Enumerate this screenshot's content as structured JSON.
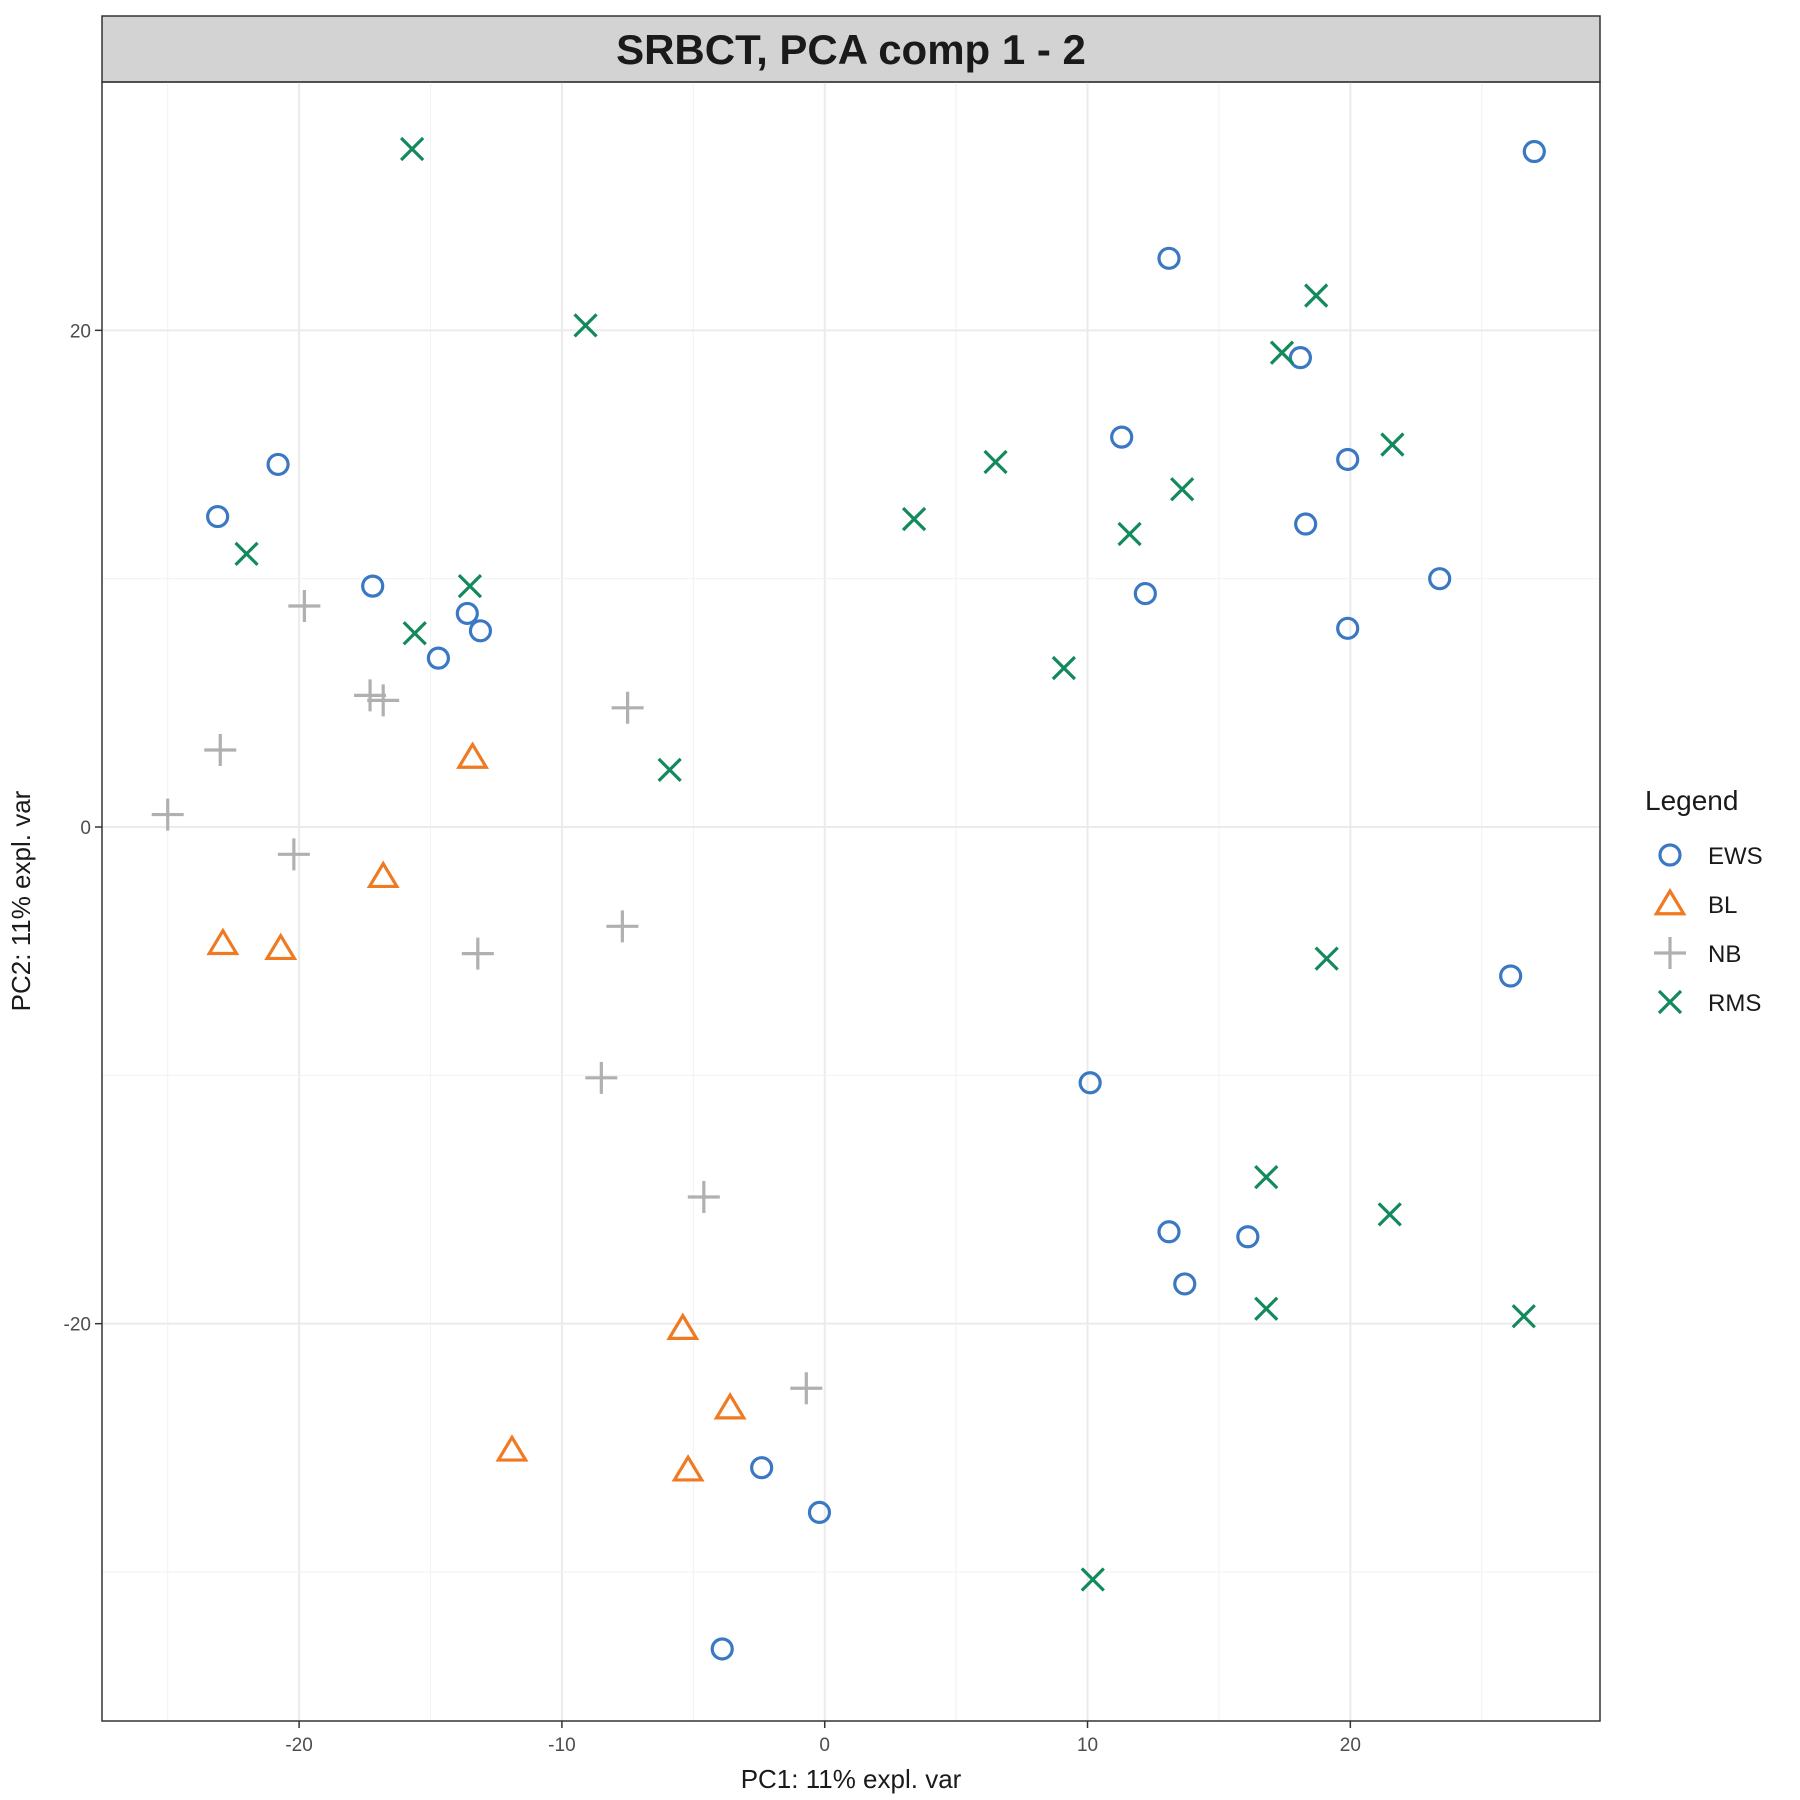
{
  "chart_data": {
    "type": "scatter",
    "title": "SRBCT, PCA comp 1 - 2",
    "xlabel": "PC1: 11% expl. var",
    "ylabel": "PC2: 11% expl. var",
    "xlim": [
      -27.5,
      29.5
    ],
    "ylim": [
      -36,
      30
    ],
    "x_ticks": [
      -20,
      -10,
      0,
      10,
      20
    ],
    "x_tick_labels": [
      "-20",
      "-10",
      "0",
      "10",
      "20"
    ],
    "y_ticks": [
      -20,
      0,
      20
    ],
    "y_tick_labels": [
      "-20",
      "0",
      "20"
    ],
    "grid": true,
    "legend": {
      "title": "Legend",
      "position": "right"
    },
    "series": [
      {
        "name": "EWS",
        "color": "#3a78c4",
        "marker": "circle",
        "points": [
          [
            27.0,
            27.2
          ],
          [
            13.1,
            22.9
          ],
          [
            18.1,
            18.9
          ],
          [
            11.3,
            15.7
          ],
          [
            19.9,
            14.8
          ],
          [
            -20.8,
            14.6
          ],
          [
            -23.1,
            12.5
          ],
          [
            18.3,
            12.2
          ],
          [
            23.4,
            10.0
          ],
          [
            -17.2,
            9.7
          ],
          [
            12.2,
            9.4
          ],
          [
            -13.6,
            8.6
          ],
          [
            -13.1,
            7.9
          ],
          [
            19.9,
            8.0
          ],
          [
            -14.7,
            6.8
          ],
          [
            26.1,
            -6.0
          ],
          [
            10.1,
            -10.3
          ],
          [
            13.1,
            -16.3
          ],
          [
            16.1,
            -16.5
          ],
          [
            13.7,
            -18.4
          ],
          [
            -2.4,
            -25.8
          ],
          [
            -0.2,
            -27.6
          ],
          [
            -3.9,
            -33.1
          ]
        ]
      },
      {
        "name": "BL",
        "color": "#f07a22",
        "marker": "triangle",
        "points": [
          [
            -13.4,
            2.8
          ],
          [
            -16.8,
            -2.0
          ],
          [
            -22.9,
            -4.7
          ],
          [
            -20.7,
            -4.9
          ],
          [
            -5.4,
            -20.2
          ],
          [
            -3.6,
            -23.4
          ],
          [
            -11.9,
            -25.1
          ],
          [
            -5.2,
            -25.9
          ]
        ]
      },
      {
        "name": "NB",
        "color": "#b0b0b0",
        "marker": "plus",
        "points": [
          [
            -19.8,
            8.9
          ],
          [
            -17.3,
            5.3
          ],
          [
            -16.8,
            5.1
          ],
          [
            -7.5,
            4.8
          ],
          [
            -23.0,
            3.1
          ],
          [
            -25.0,
            0.5
          ],
          [
            -20.2,
            -1.1
          ],
          [
            -7.7,
            -4.0
          ],
          [
            -13.2,
            -5.1
          ],
          [
            -8.5,
            -10.1
          ],
          [
            -4.6,
            -14.9
          ],
          [
            -0.7,
            -22.6
          ]
        ]
      },
      {
        "name": "RMS",
        "color": "#138a5c",
        "marker": "x",
        "points": [
          [
            -15.7,
            27.3
          ],
          [
            18.7,
            21.4
          ],
          [
            -9.1,
            20.2
          ],
          [
            17.4,
            19.1
          ],
          [
            21.6,
            15.4
          ],
          [
            6.5,
            14.7
          ],
          [
            13.6,
            13.6
          ],
          [
            3.4,
            12.4
          ],
          [
            11.6,
            11.8
          ],
          [
            -22.0,
            11.0
          ],
          [
            -13.5,
            9.7
          ],
          [
            -15.6,
            7.8
          ],
          [
            9.1,
            6.4
          ],
          [
            -5.9,
            2.3
          ],
          [
            19.1,
            -5.3
          ],
          [
            16.8,
            -14.1
          ],
          [
            21.5,
            -15.6
          ],
          [
            16.8,
            -19.4
          ],
          [
            26.6,
            -19.7
          ],
          [
            10.2,
            -30.3
          ]
        ]
      }
    ]
  }
}
